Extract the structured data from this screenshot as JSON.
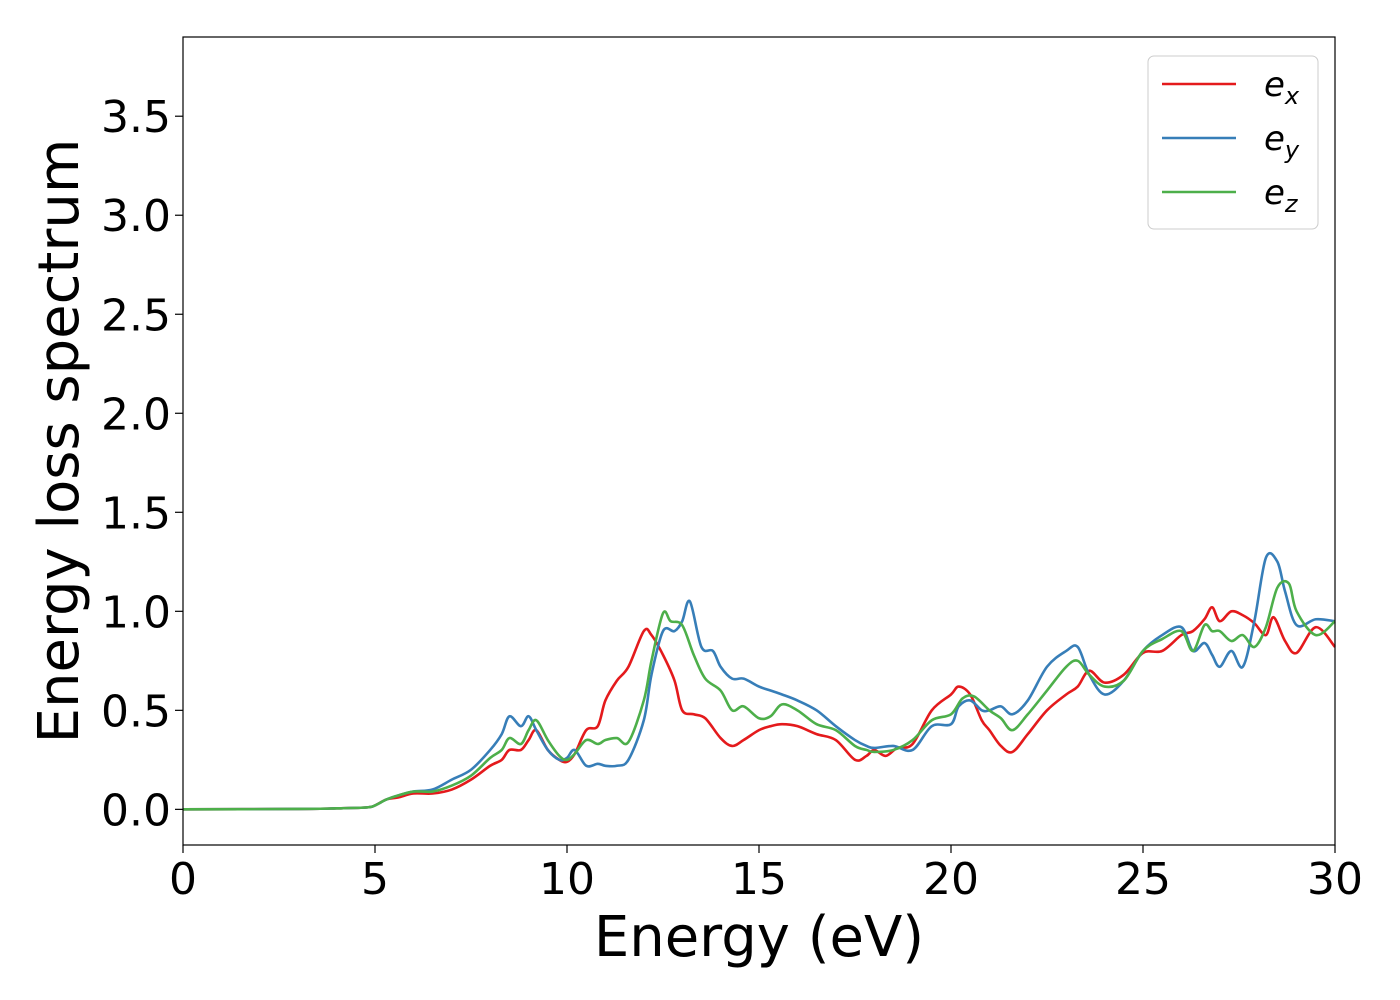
{
  "chart_data": {
    "type": "line",
    "xlabel": "Energy (eV)",
    "ylabel": "Energy loss spectrum",
    "xlim": [
      0,
      30
    ],
    "ylim": [
      -0.18,
      3.9
    ],
    "xticks": [
      0,
      5,
      10,
      15,
      20,
      25,
      30
    ],
    "xtick_labels": [
      "0",
      "5",
      "10",
      "15",
      "20",
      "25",
      "30"
    ],
    "yticks": [
      0.0,
      0.5,
      1.0,
      1.5,
      2.0,
      2.5,
      3.0,
      3.5
    ],
    "ytick_labels": [
      "0.0",
      "0.5",
      "1.0",
      "1.5",
      "2.0",
      "2.5",
      "3.0",
      "3.5"
    ],
    "grid": false,
    "legend_position": "top-right",
    "series": [
      {
        "name": "e",
        "subscript": "x",
        "color": "#e41a1c",
        "x": [
          0,
          3,
          4,
          4.8,
          5,
          5.3,
          5.6,
          6,
          6.5,
          7,
          7.5,
          8,
          8.3,
          8.5,
          8.8,
          9,
          9.2,
          9.5,
          9.8,
          10,
          10.2,
          10.5,
          10.8,
          11,
          11.3,
          11.6,
          12,
          12.2,
          12.5,
          12.8,
          13,
          13.3,
          13.6,
          14,
          14.3,
          14.6,
          15,
          15.3,
          15.6,
          16,
          16.5,
          17,
          17.5,
          17.8,
          18,
          18.3,
          18.6,
          19,
          19.5,
          20,
          20.2,
          20.5,
          20.8,
          21,
          21.3,
          21.6,
          22,
          22.5,
          23,
          23.3,
          23.6,
          24,
          24.5,
          25,
          25.5,
          26,
          26.3,
          26.6,
          26.8,
          27,
          27.3,
          27.6,
          27.9,
          28.2,
          28.4,
          28.7,
          29,
          29.5,
          30
        ],
        "y": [
          0,
          0.002,
          0.005,
          0.01,
          0.02,
          0.05,
          0.06,
          0.08,
          0.08,
          0.1,
          0.15,
          0.22,
          0.25,
          0.3,
          0.3,
          0.35,
          0.4,
          0.3,
          0.25,
          0.24,
          0.28,
          0.4,
          0.42,
          0.55,
          0.65,
          0.72,
          0.9,
          0.88,
          0.78,
          0.65,
          0.5,
          0.48,
          0.46,
          0.36,
          0.32,
          0.35,
          0.4,
          0.42,
          0.43,
          0.42,
          0.38,
          0.35,
          0.25,
          0.27,
          0.3,
          0.27,
          0.31,
          0.33,
          0.5,
          0.58,
          0.62,
          0.58,
          0.45,
          0.4,
          0.32,
          0.29,
          0.38,
          0.5,
          0.58,
          0.62,
          0.7,
          0.64,
          0.68,
          0.79,
          0.8,
          0.88,
          0.9,
          0.96,
          1.02,
          0.95,
          1.0,
          0.98,
          0.94,
          0.88,
          0.97,
          0.85,
          0.79,
          0.92,
          0.82
        ]
      },
      {
        "name": "e",
        "subscript": "y",
        "color": "#377eb8",
        "x": [
          0,
          3,
          4,
          4.8,
          5,
          5.3,
          5.6,
          6,
          6.5,
          7,
          7.5,
          8,
          8.3,
          8.5,
          8.8,
          9,
          9.2,
          9.5,
          9.8,
          10,
          10.2,
          10.5,
          10.8,
          11,
          11.3,
          11.6,
          12,
          12.2,
          12.5,
          12.8,
          13,
          13.2,
          13.5,
          13.8,
          14,
          14.3,
          14.6,
          15,
          15.3,
          15.6,
          16,
          16.5,
          17,
          17.5,
          17.8,
          18,
          18.5,
          19,
          19.5,
          20,
          20.2,
          20.5,
          20.8,
          21,
          21.3,
          21.6,
          22,
          22.5,
          23,
          23.3,
          23.6,
          24,
          24.5,
          25,
          25.5,
          26,
          26.3,
          26.6,
          26.8,
          27,
          27.3,
          27.6,
          27.9,
          28.2,
          28.5,
          28.7,
          29,
          29.5,
          30
        ],
        "y": [
          0,
          0.002,
          0.005,
          0.01,
          0.02,
          0.05,
          0.07,
          0.09,
          0.1,
          0.15,
          0.2,
          0.3,
          0.38,
          0.47,
          0.42,
          0.47,
          0.4,
          0.3,
          0.25,
          0.26,
          0.3,
          0.22,
          0.23,
          0.22,
          0.22,
          0.25,
          0.45,
          0.68,
          0.9,
          0.9,
          0.95,
          1.05,
          0.82,
          0.8,
          0.72,
          0.66,
          0.66,
          0.62,
          0.6,
          0.58,
          0.55,
          0.5,
          0.42,
          0.35,
          0.32,
          0.31,
          0.32,
          0.3,
          0.42,
          0.43,
          0.52,
          0.55,
          0.5,
          0.5,
          0.52,
          0.48,
          0.55,
          0.72,
          0.8,
          0.82,
          0.68,
          0.58,
          0.65,
          0.8,
          0.88,
          0.92,
          0.8,
          0.84,
          0.78,
          0.72,
          0.8,
          0.72,
          0.95,
          1.27,
          1.25,
          1.1,
          0.93,
          0.96,
          0.95
        ]
      },
      {
        "name": "e",
        "subscript": "z",
        "color": "#4daf4a",
        "x": [
          0,
          3,
          4,
          4.8,
          5,
          5.3,
          5.6,
          6,
          6.5,
          7,
          7.5,
          8,
          8.3,
          8.5,
          8.8,
          9,
          9.2,
          9.5,
          9.8,
          10,
          10.2,
          10.5,
          10.8,
          11,
          11.3,
          11.6,
          12,
          12.2,
          12.5,
          12.7,
          13,
          13.3,
          13.6,
          14,
          14.3,
          14.6,
          15,
          15.3,
          15.6,
          16,
          16.5,
          17,
          17.5,
          17.8,
          18,
          18.5,
          19,
          19.5,
          20,
          20.3,
          20.6,
          21,
          21.3,
          21.6,
          22,
          22.5,
          23,
          23.3,
          23.6,
          24,
          24.5,
          25,
          25.5,
          26,
          26.3,
          26.6,
          26.8,
          27,
          27.3,
          27.6,
          27.9,
          28.2,
          28.5,
          28.8,
          29,
          29.5,
          30
        ],
        "y": [
          0,
          0.002,
          0.005,
          0.01,
          0.02,
          0.05,
          0.07,
          0.09,
          0.09,
          0.12,
          0.17,
          0.26,
          0.3,
          0.36,
          0.33,
          0.4,
          0.45,
          0.35,
          0.27,
          0.25,
          0.28,
          0.35,
          0.33,
          0.35,
          0.36,
          0.34,
          0.55,
          0.75,
          0.99,
          0.95,
          0.93,
          0.78,
          0.66,
          0.6,
          0.5,
          0.52,
          0.46,
          0.47,
          0.53,
          0.5,
          0.43,
          0.4,
          0.32,
          0.3,
          0.29,
          0.3,
          0.35,
          0.45,
          0.48,
          0.56,
          0.57,
          0.5,
          0.46,
          0.4,
          0.48,
          0.6,
          0.72,
          0.75,
          0.68,
          0.62,
          0.65,
          0.8,
          0.86,
          0.9,
          0.8,
          0.93,
          0.9,
          0.9,
          0.85,
          0.88,
          0.82,
          0.92,
          1.12,
          1.14,
          1.0,
          0.88,
          0.95
        ]
      }
    ]
  }
}
